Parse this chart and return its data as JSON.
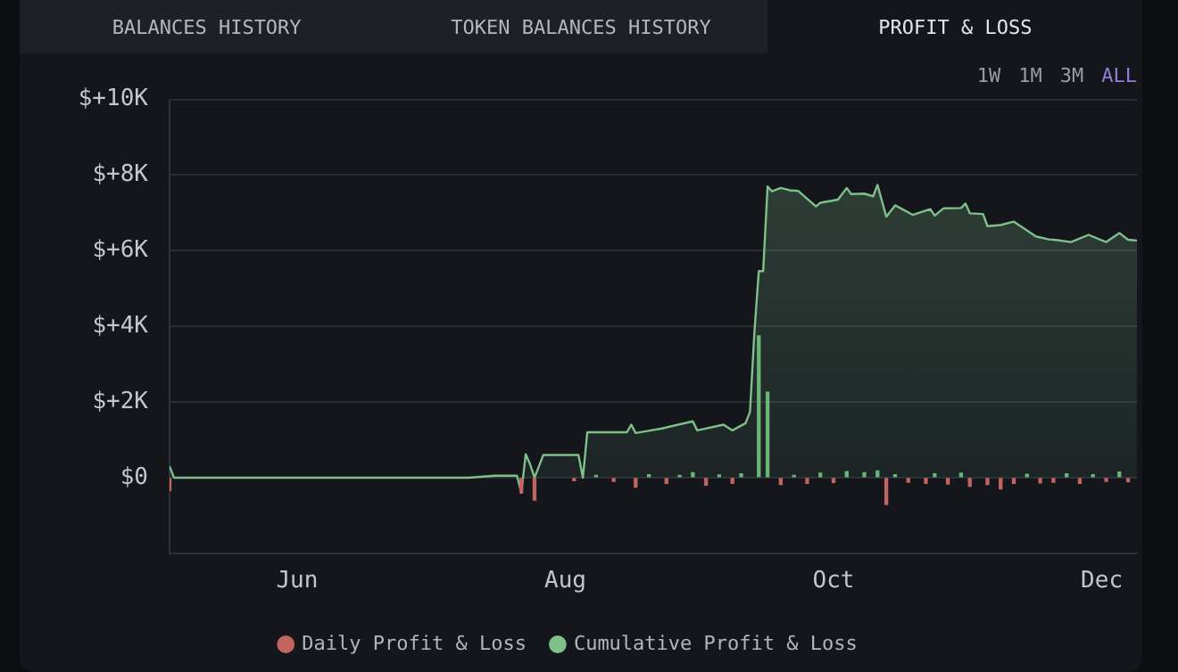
{
  "chart_data": {
    "type": "area",
    "annotations": [
      "BALANCES HISTORY",
      "TOKEN BALANCES HISTORY",
      "PROFIT & LOSS",
      "1W",
      "1M",
      "3M",
      "ALL"
    ],
    "xlim": [
      "--05-03",
      "--12-09"
    ],
    "xticks": [
      {
        "value": "--06-01",
        "label": "Jun"
      },
      {
        "value": "--08-01",
        "label": "Aug"
      },
      {
        "value": "--10-01",
        "label": "Oct"
      },
      {
        "value": "--12-01",
        "label": "Dec"
      }
    ],
    "ylim": [
      -2000,
      10000
    ],
    "yticks": [
      {
        "value": -2000,
        "label": null
      },
      {
        "value": 0,
        "label": "$0"
      },
      {
        "value": 2000,
        "label": "$+2K"
      },
      {
        "value": 4000,
        "label": "$+4K"
      },
      {
        "value": 6000,
        "label": "$+6K"
      },
      {
        "value": 8000,
        "label": "$+8K"
      },
      {
        "value": 10000,
        "label": "$+10K"
      }
    ],
    "grid": "y",
    "legend": "bottom",
    "marker": "none",
    "line_style": "solid",
    "series": [
      {
        "name": "Daily Profit & Loss",
        "type": "bar",
        "color": "#c2645f",
        "x": [
          "--05-03",
          "--07-22",
          "--07-25",
          "--08-03",
          "--08-08",
          "--08-12",
          "--08-17",
          "--08-20",
          "--08-24",
          "--08-27",
          "--08-30",
          "--09-02",
          "--09-05",
          "--09-08",
          "--09-10",
          "--09-14",
          "--09-16",
          "--09-19",
          "--09-22",
          "--09-25",
          "--09-28",
          "--10-01",
          "--10-04",
          "--10-08",
          "--10-11",
          "--10-13",
          "--10-15",
          "--10-18",
          "--10-22",
          "--10-24",
          "--10-27",
          "--10-30",
          "--11-01",
          "--11-05",
          "--11-08",
          "--11-11",
          "--11-14",
          "--11-17",
          "--11-20",
          "--11-23",
          "--11-26",
          "--11-29",
          "--12-02",
          "--12-05",
          "--12-07"
        ],
        "values": [
          -340,
          -400,
          -590,
          -80,
          60,
          -100,
          -250,
          80,
          -150,
          60,
          130,
          -200,
          70,
          -150,
          100,
          3750,
          2260,
          -180,
          60,
          -150,
          120,
          -130,
          160,
          130,
          180,
          -710,
          80,
          -120,
          -150,
          100,
          -170,
          120,
          -230,
          -180,
          -300,
          -150,
          90,
          -140,
          -120,
          100,
          -150,
          80,
          -100,
          150,
          -110
        ],
        "colors": [
          "#c2645f",
          "#c2645f",
          "#c2645f",
          "#c2645f",
          "#6ab677",
          "#c2645f",
          "#c2645f",
          "#6ab677",
          "#c2645f",
          "#6ab677",
          "#6ab677",
          "#c2645f",
          "#6ab677",
          "#c2645f",
          "#6ab677",
          "#6ab677",
          "#6ab677",
          "#c2645f",
          "#6ab677",
          "#c2645f",
          "#6ab677",
          "#c2645f",
          "#6ab677",
          "#6ab677",
          "#6ab677",
          "#c2645f",
          "#6ab677",
          "#c2645f",
          "#c2645f",
          "#6ab677",
          "#c2645f",
          "#6ab677",
          "#c2645f",
          "#c2645f",
          "#c2645f",
          "#c2645f",
          "#6ab677",
          "#c2645f",
          "#c2645f",
          "#6ab677",
          "#c2645f",
          "#6ab677",
          "#c2645f",
          "#6ab677",
          "#c2645f"
        ]
      },
      {
        "name": "Cumulative Profit & Loss",
        "color": "#7fc08a",
        "x": [
          "--05-03",
          "--05-04",
          "--07-10",
          "--07-16",
          "--07-21",
          "--07-22",
          "--07-23",
          "--07-24",
          "--07-25",
          "--07-27",
          "--08-04",
          "--08-05",
          "--08-06",
          "--08-15",
          "--08-16",
          "--08-17",
          "--08-19",
          "--08-23",
          "--08-30",
          "--08-31",
          "--09-06",
          "--09-08",
          "--09-11",
          "--09-12",
          "--09-13",
          "--09-14",
          "--09-15",
          "--09-16",
          "--09-17",
          "--09-19",
          "--09-21",
          "--09-23",
          "--09-27",
          "--09-28",
          "--10-02",
          "--10-04",
          "--10-05",
          "--10-08",
          "--10-10",
          "--10-11",
          "--10-13",
          "--10-15",
          "--10-19",
          "--10-23",
          "--10-24",
          "--10-26",
          "--10-30",
          "--10-31",
          "--11-01",
          "--11-04",
          "--11-05",
          "--11-08",
          "--11-11",
          "--11-16",
          "--11-19",
          "--11-21",
          "--11-24",
          "--11-28",
          "--12-02",
          "--12-05",
          "--12-07",
          "--12-09"
        ],
        "values": [
          300,
          0,
          0,
          50,
          50,
          -400,
          620,
          350,
          0,
          600,
          600,
          0,
          1200,
          1200,
          1400,
          1180,
          1220,
          1300,
          1490,
          1250,
          1400,
          1250,
          1440,
          1740,
          3830,
          5460,
          5460,
          7700,
          7570,
          7660,
          7600,
          7580,
          7170,
          7270,
          7350,
          7660,
          7500,
          7510,
          7440,
          7740,
          6900,
          7200,
          6950,
          7100,
          6930,
          7120,
          7130,
          7250,
          6990,
          6970,
          6650,
          6680,
          6770,
          6380,
          6300,
          6280,
          6230,
          6420,
          6230,
          6470,
          6290,
          6270
        ]
      }
    ]
  }
}
